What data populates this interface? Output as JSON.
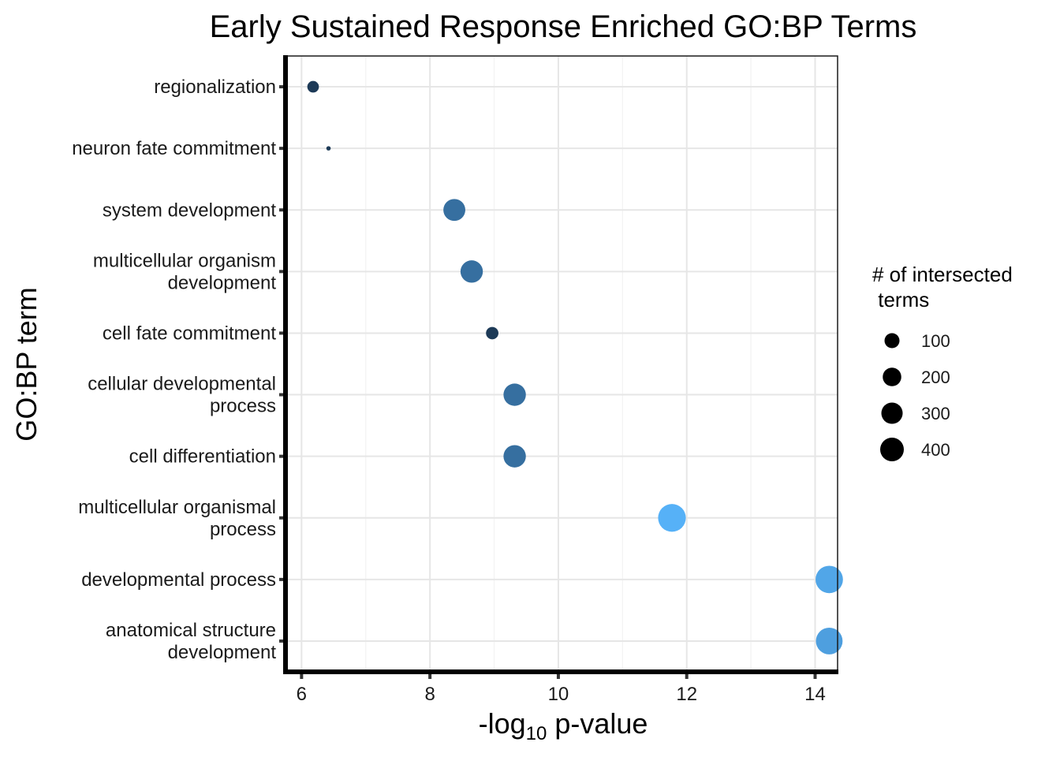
{
  "chart_data": {
    "type": "scatter",
    "title": "Early Sustained Response Enriched GO:BP Terms",
    "xlabel": "-log10 p-value",
    "xlabel_main": "-log",
    "xlabel_sub": "10",
    "xlabel_rest": " p-value",
    "ylabel": "GO:BP term",
    "xlim": [
      5.75,
      14.35
    ],
    "xticks": [
      6,
      8,
      10,
      12,
      14
    ],
    "grid": true,
    "legend_placement": "right",
    "legend": {
      "title_lines": [
        "# of intersected",
        " terms"
      ],
      "sizes": [
        100,
        200,
        300,
        400
      ]
    },
    "categories": [
      "regionalization",
      "neuron fate commitment",
      "system development",
      "multicellular organism development",
      "cell fate commitment",
      "cellular developmental process",
      "cell differentiation",
      "multicellular organismal process",
      "developmental process",
      "anatomical structure development"
    ],
    "category_label_lines": [
      [
        "regionalization"
      ],
      [
        "neuron fate commitment"
      ],
      [
        "system development"
      ],
      [
        "multicellular organism",
        "development"
      ],
      [
        "cell fate commitment"
      ],
      [
        "cellular developmental",
        "process"
      ],
      [
        "cell differentiation"
      ],
      [
        "multicellular organismal",
        "process"
      ],
      [
        "developmental process"
      ],
      [
        "anatomical structure",
        "development"
      ]
    ],
    "points": [
      {
        "term": "regionalization",
        "x": 6.18,
        "size": 70,
        "color": "#1d3a57"
      },
      {
        "term": "neuron fate commitment",
        "x": 6.42,
        "size": 10,
        "color": "#1d3a57"
      },
      {
        "term": "system development",
        "x": 8.38,
        "size": 250,
        "color": "#366fa0"
      },
      {
        "term": "multicellular organism development",
        "x": 8.65,
        "size": 260,
        "color": "#366fa0"
      },
      {
        "term": "cell fate commitment",
        "x": 8.97,
        "size": 80,
        "color": "#1d3a57"
      },
      {
        "term": "cellular developmental process",
        "x": 9.32,
        "size": 260,
        "color": "#366fa0"
      },
      {
        "term": "cell differentiation",
        "x": 9.32,
        "size": 260,
        "color": "#366fa0"
      },
      {
        "term": "multicellular organismal process",
        "x": 11.77,
        "size": 400,
        "color": "#56b1f7"
      },
      {
        "term": "developmental process",
        "x": 14.22,
        "size": 390,
        "color": "#51a6e8"
      },
      {
        "term": "anatomical structure development",
        "x": 14.22,
        "size": 370,
        "color": "#4e9fdf"
      }
    ]
  }
}
